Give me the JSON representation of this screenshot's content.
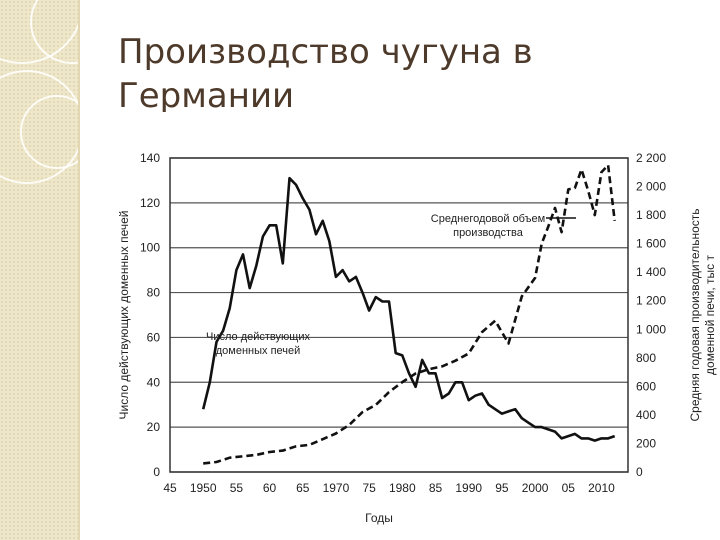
{
  "slide": {
    "title": "Производство чугуна в Германии"
  },
  "chart_data": {
    "type": "line",
    "xlabel": "Годы",
    "ylabel_left": "Число действующих доменных печей",
    "ylabel_right": "Средняя годовая производительность доменной печи, тыс т",
    "x_ticks": [
      "45",
      "1950",
      "55",
      "60",
      "65",
      "1970",
      "75",
      "1980",
      "85",
      "1990",
      "95",
      "2000",
      "05",
      "2010"
    ],
    "x_tick_values": [
      1945,
      1950,
      1955,
      1960,
      1965,
      1970,
      1975,
      1980,
      1985,
      1990,
      1995,
      2000,
      2005,
      2010
    ],
    "xlim": [
      1945,
      2014
    ],
    "y_left_ticks": [
      "0",
      "20",
      "40",
      "60",
      "80",
      "100",
      "120",
      "140"
    ],
    "y_left_tick_values": [
      0,
      20,
      40,
      60,
      80,
      100,
      120,
      140
    ],
    "ylim_left": [
      0,
      140
    ],
    "y_right_ticks": [
      "0",
      "200",
      "400",
      "600",
      "800",
      "1 000",
      "1 200",
      "1 400",
      "1 600",
      "1 800",
      "2 000",
      "2 200"
    ],
    "y_right_tick_values": [
      0,
      200,
      400,
      600,
      800,
      1000,
      1200,
      1400,
      1600,
      1800,
      2000,
      2200
    ],
    "ylim_right": [
      0,
      2200
    ],
    "grid": "horizontal",
    "series": [
      {
        "name": "Число действующих доменных печей",
        "axis": "left",
        "style": "solid",
        "x": [
          1950,
          1951,
          1952,
          1953,
          1954,
          1955,
          1956,
          1957,
          1958,
          1959,
          1960,
          1961,
          1962,
          1963,
          1964,
          1965,
          1966,
          1967,
          1968,
          1969,
          1970,
          1971,
          1972,
          1973,
          1974,
          1975,
          1976,
          1977,
          1978,
          1979,
          1980,
          1981,
          1982,
          1983,
          1984,
          1985,
          1986,
          1987,
          1988,
          1989,
          1990,
          1991,
          1992,
          1993,
          1994,
          1995,
          1996,
          1997,
          1998,
          1999,
          2000,
          2001,
          2002,
          2003,
          2004,
          2005,
          2006,
          2007,
          2008,
          2009,
          2010,
          2011,
          2012
        ],
        "values": [
          28,
          40,
          58,
          63,
          73,
          90,
          97,
          82,
          92,
          105,
          110,
          110,
          93,
          131,
          128,
          122,
          117,
          106,
          112,
          103,
          87,
          90,
          85,
          87,
          80,
          72,
          78,
          76,
          76,
          53,
          52,
          44,
          38,
          50,
          44,
          44,
          33,
          35,
          40,
          40,
          32,
          34,
          35,
          30,
          28,
          26,
          27,
          28,
          24,
          22,
          20,
          20,
          19,
          18,
          15,
          16,
          17,
          15,
          15,
          14,
          15,
          15,
          16
        ]
      },
      {
        "name": "Среднегодовой объем производства",
        "axis": "right",
        "style": "dashed",
        "x": [
          1950,
          1952,
          1954,
          1956,
          1958,
          1960,
          1962,
          1964,
          1966,
          1968,
          1970,
          1972,
          1974,
          1976,
          1978,
          1980,
          1982,
          1984,
          1986,
          1988,
          1990,
          1992,
          1994,
          1996,
          1998,
          2000,
          2001,
          2002,
          2003,
          2004,
          2005,
          2006,
          2007,
          2008,
          2009,
          2010,
          2011,
          2012
        ],
        "values": [
          60,
          70,
          100,
          110,
          120,
          140,
          150,
          180,
          190,
          230,
          270,
          330,
          420,
          470,
          560,
          630,
          690,
          720,
          740,
          780,
          830,
          980,
          1060,
          900,
          1230,
          1360,
          1600,
          1720,
          1850,
          1680,
          1980,
          1990,
          2120,
          1970,
          1800,
          2100,
          2150,
          1760
        ]
      }
    ],
    "annotations": [
      {
        "text_lines": [
          "Среднегодовой объем",
          "производства"
        ],
        "target_series": 1
      },
      {
        "text_lines": [
          "Число действующих",
          "доменных печей"
        ],
        "target_series": 0
      }
    ]
  }
}
